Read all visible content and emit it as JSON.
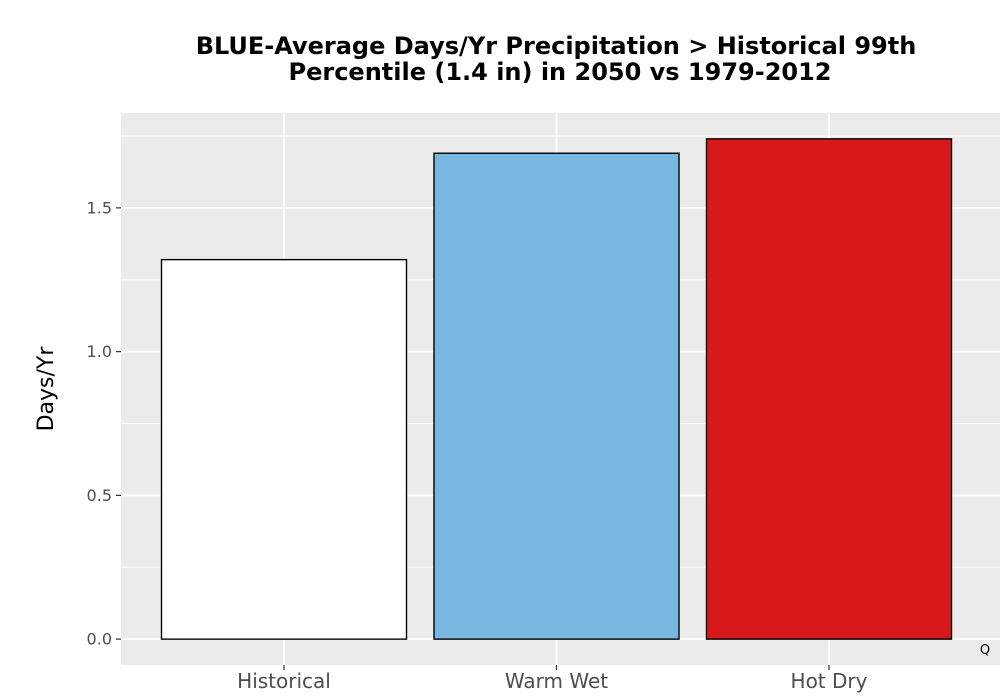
{
  "chart_data": {
    "type": "bar",
    "title_lines": [
      "BLUE-Average Days/Yr Precipitation > Historical 99th",
      "Percentile (1.4 in) in 2050 vs 1979-2012"
    ],
    "xlabel": "",
    "ylabel": "Days/Yr",
    "categories": [
      "Historical",
      "Warm Wet",
      "Hot Dry"
    ],
    "values": [
      1.32,
      1.69,
      1.74
    ],
    "bar_colors": [
      "#ffffff",
      "#78b7e0",
      "#d7191c"
    ],
    "bar_outline": "#000000",
    "ylim": [
      -0.09,
      1.83
    ],
    "yticks": [
      0.0,
      0.5,
      1.0,
      1.5
    ],
    "ytick_labels": [
      "0.0",
      "0.5",
      "1.0",
      "1.5"
    ],
    "grid": true,
    "panel_background": "#ebebeb",
    "grid_color": "#ffffff"
  },
  "corner_mark": "Q"
}
